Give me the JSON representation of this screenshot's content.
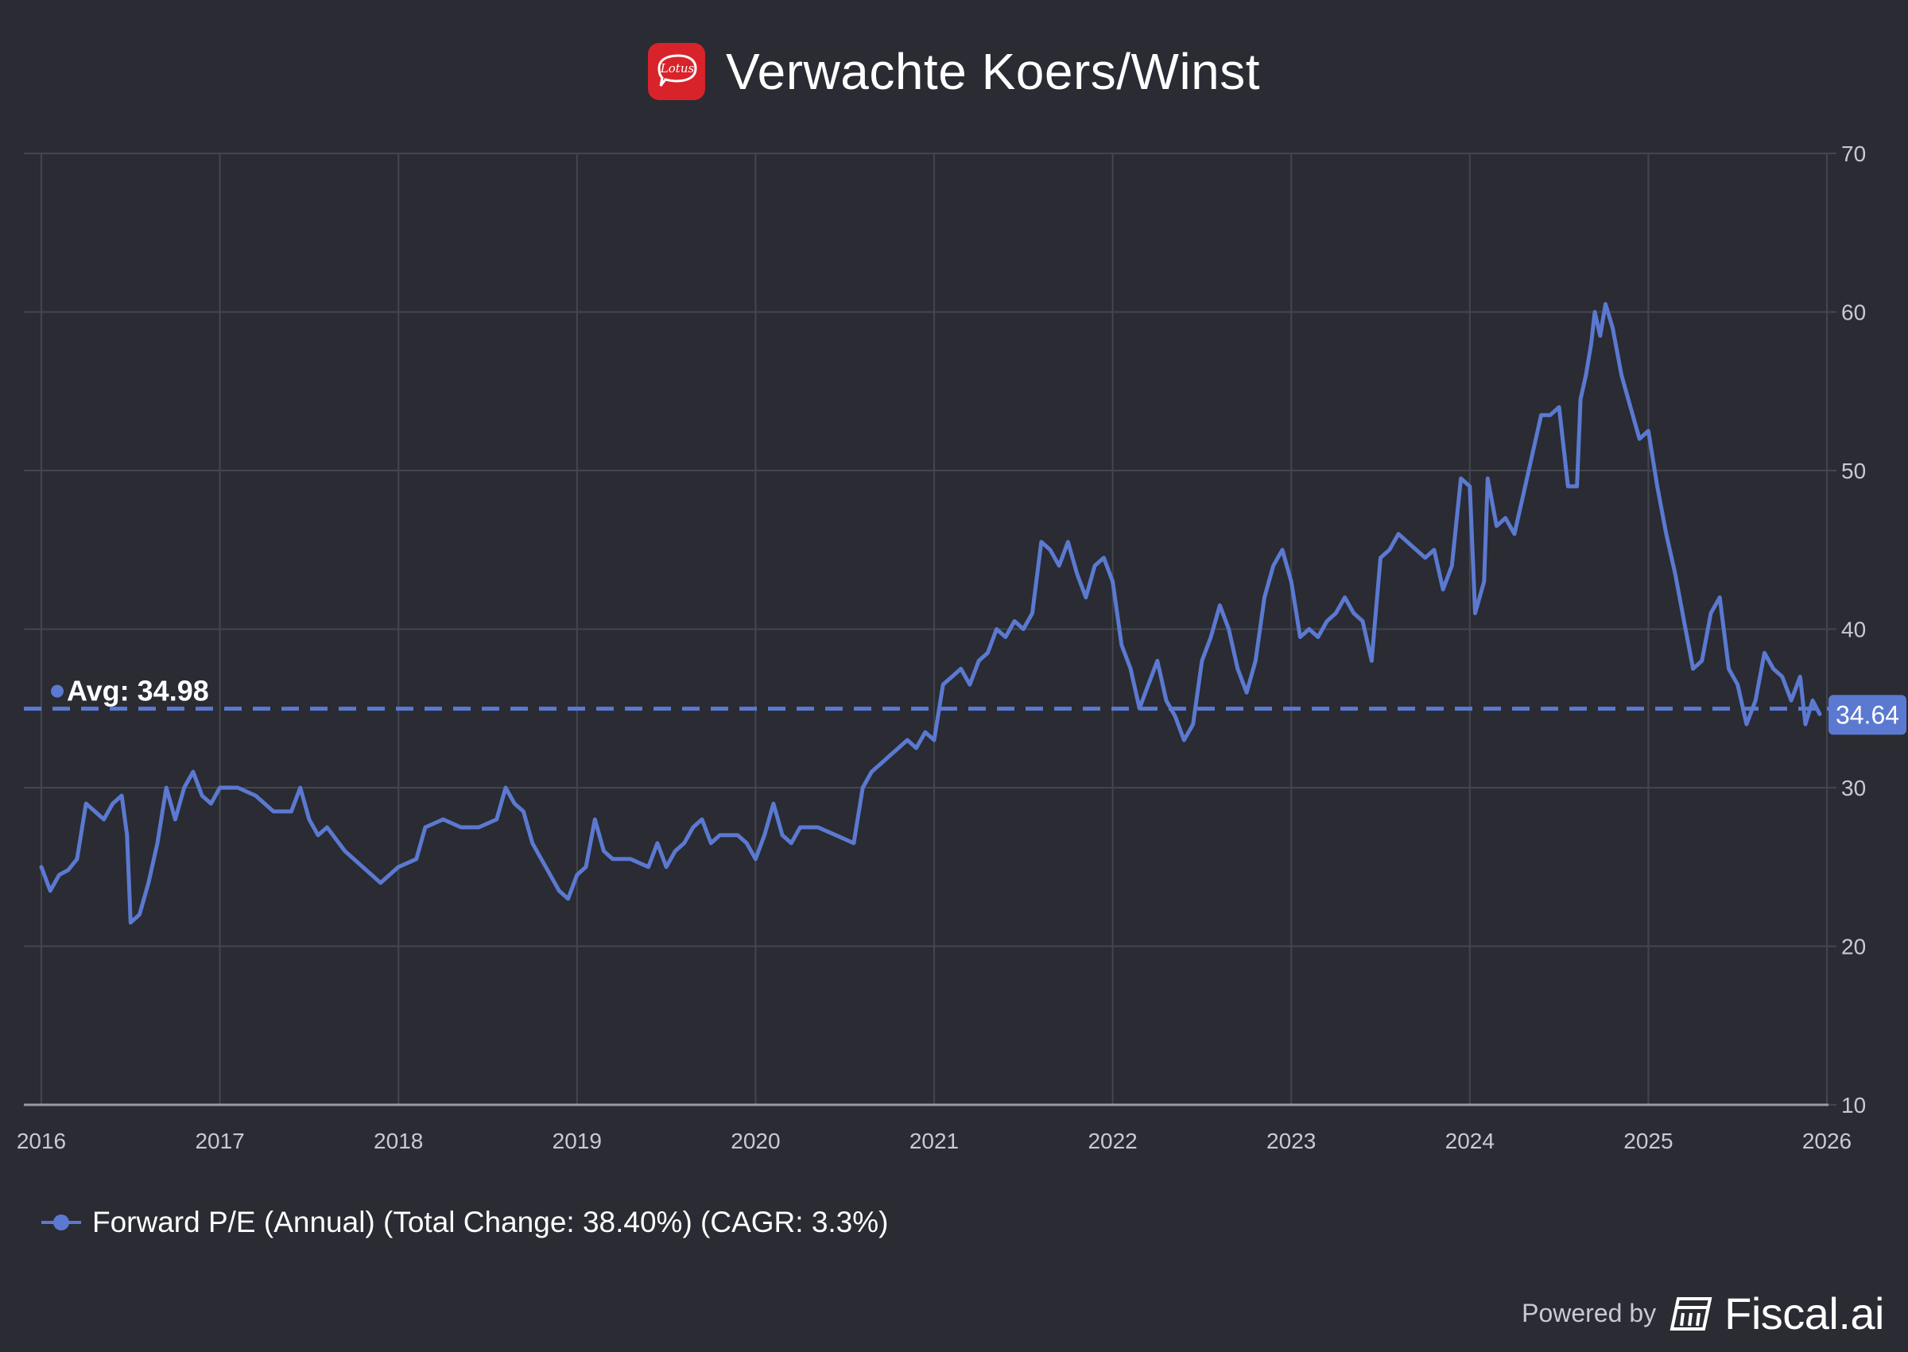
{
  "header": {
    "title": "Verwachte Koers/Winst",
    "logo_text": "Lotus"
  },
  "chart_data": {
    "type": "line",
    "title": "Verwachte Koers/Winst",
    "xlabel": "",
    "ylabel": "",
    "x_ticks": [
      "2016",
      "2017",
      "2018",
      "2019",
      "2020",
      "2021",
      "2022",
      "2023",
      "2024",
      "2025",
      "2026"
    ],
    "y_ticks": [
      10,
      20,
      30,
      40,
      50,
      60,
      70
    ],
    "xlim": [
      2016.0,
      2026.0
    ],
    "ylim": [
      10,
      70
    ],
    "y_axis_side": "right",
    "grid": true,
    "average": {
      "label": "Avg: 34.98",
      "value": 34.98
    },
    "last_value_label": "34.64",
    "legend_position": "bottom-left",
    "series": [
      {
        "name": "Forward P/E (Annual) (Total Change: 38.40%) (CAGR: 3.3%)",
        "color": "#5b79d0",
        "points": [
          [
            2016.0,
            25.0
          ],
          [
            2016.05,
            23.5
          ],
          [
            2016.1,
            24.5
          ],
          [
            2016.15,
            24.8
          ],
          [
            2016.2,
            25.5
          ],
          [
            2016.25,
            29.0
          ],
          [
            2016.3,
            28.5
          ],
          [
            2016.35,
            28.0
          ],
          [
            2016.4,
            29.0
          ],
          [
            2016.45,
            29.5
          ],
          [
            2016.48,
            27.0
          ],
          [
            2016.5,
            21.5
          ],
          [
            2016.55,
            22.0
          ],
          [
            2016.6,
            24.0
          ],
          [
            2016.65,
            26.5
          ],
          [
            2016.7,
            30.0
          ],
          [
            2016.75,
            28.0
          ],
          [
            2016.8,
            30.0
          ],
          [
            2016.85,
            31.0
          ],
          [
            2016.9,
            29.5
          ],
          [
            2016.95,
            29.0
          ],
          [
            2017.0,
            30.0
          ],
          [
            2017.1,
            30.0
          ],
          [
            2017.2,
            29.5
          ],
          [
            2017.3,
            28.5
          ],
          [
            2017.4,
            28.5
          ],
          [
            2017.45,
            30.0
          ],
          [
            2017.5,
            28.0
          ],
          [
            2017.55,
            27.0
          ],
          [
            2017.6,
            27.5
          ],
          [
            2017.7,
            26.0
          ],
          [
            2017.8,
            25.0
          ],
          [
            2017.9,
            24.0
          ],
          [
            2018.0,
            25.0
          ],
          [
            2018.1,
            25.5
          ],
          [
            2018.15,
            27.5
          ],
          [
            2018.25,
            28.0
          ],
          [
            2018.35,
            27.5
          ],
          [
            2018.45,
            27.5
          ],
          [
            2018.55,
            28.0
          ],
          [
            2018.6,
            30.0
          ],
          [
            2018.65,
            29.0
          ],
          [
            2018.7,
            28.5
          ],
          [
            2018.75,
            26.5
          ],
          [
            2018.8,
            25.5
          ],
          [
            2018.85,
            24.5
          ],
          [
            2018.9,
            23.5
          ],
          [
            2018.95,
            23.0
          ],
          [
            2019.0,
            24.5
          ],
          [
            2019.05,
            25.0
          ],
          [
            2019.1,
            28.0
          ],
          [
            2019.15,
            26.0
          ],
          [
            2019.2,
            25.5
          ],
          [
            2019.3,
            25.5
          ],
          [
            2019.4,
            25.0
          ],
          [
            2019.45,
            26.5
          ],
          [
            2019.5,
            25.0
          ],
          [
            2019.55,
            26.0
          ],
          [
            2019.6,
            26.5
          ],
          [
            2019.65,
            27.5
          ],
          [
            2019.7,
            28.0
          ],
          [
            2019.75,
            26.5
          ],
          [
            2019.8,
            27.0
          ],
          [
            2019.9,
            27.0
          ],
          [
            2019.95,
            26.5
          ],
          [
            2020.0,
            25.5
          ],
          [
            2020.05,
            27.0
          ],
          [
            2020.1,
            29.0
          ],
          [
            2020.15,
            27.0
          ],
          [
            2020.2,
            26.5
          ],
          [
            2020.25,
            27.5
          ],
          [
            2020.35,
            27.5
          ],
          [
            2020.45,
            27.0
          ],
          [
            2020.55,
            26.5
          ],
          [
            2020.6,
            30.0
          ],
          [
            2020.65,
            31.0
          ],
          [
            2020.7,
            31.5
          ],
          [
            2020.75,
            32.0
          ],
          [
            2020.8,
            32.5
          ],
          [
            2020.85,
            33.0
          ],
          [
            2020.9,
            32.5
          ],
          [
            2020.95,
            33.5
          ],
          [
            2021.0,
            33.0
          ],
          [
            2021.05,
            36.5
          ],
          [
            2021.1,
            37.0
          ],
          [
            2021.15,
            37.5
          ],
          [
            2021.2,
            36.5
          ],
          [
            2021.25,
            38.0
          ],
          [
            2021.3,
            38.5
          ],
          [
            2021.35,
            40.0
          ],
          [
            2021.4,
            39.5
          ],
          [
            2021.45,
            40.5
          ],
          [
            2021.5,
            40.0
          ],
          [
            2021.55,
            41.0
          ],
          [
            2021.6,
            45.5
          ],
          [
            2021.65,
            45.0
          ],
          [
            2021.7,
            44.0
          ],
          [
            2021.75,
            45.5
          ],
          [
            2021.8,
            43.5
          ],
          [
            2021.85,
            42.0
          ],
          [
            2021.9,
            44.0
          ],
          [
            2021.95,
            44.5
          ],
          [
            2022.0,
            43.0
          ],
          [
            2022.05,
            39.0
          ],
          [
            2022.1,
            37.5
          ],
          [
            2022.15,
            35.0
          ],
          [
            2022.2,
            36.5
          ],
          [
            2022.25,
            38.0
          ],
          [
            2022.3,
            35.5
          ],
          [
            2022.35,
            34.5
          ],
          [
            2022.4,
            33.0
          ],
          [
            2022.45,
            34.0
          ],
          [
            2022.5,
            38.0
          ],
          [
            2022.55,
            39.5
          ],
          [
            2022.6,
            41.5
          ],
          [
            2022.65,
            40.0
          ],
          [
            2022.7,
            37.5
          ],
          [
            2022.75,
            36.0
          ],
          [
            2022.8,
            38.0
          ],
          [
            2022.85,
            42.0
          ],
          [
            2022.9,
            44.0
          ],
          [
            2022.95,
            45.0
          ],
          [
            2023.0,
            43.0
          ],
          [
            2023.05,
            39.5
          ],
          [
            2023.1,
            40.0
          ],
          [
            2023.15,
            39.5
          ],
          [
            2023.2,
            40.5
          ],
          [
            2023.25,
            41.0
          ],
          [
            2023.3,
            42.0
          ],
          [
            2023.35,
            41.0
          ],
          [
            2023.4,
            40.5
          ],
          [
            2023.45,
            38.0
          ],
          [
            2023.5,
            44.5
          ],
          [
            2023.55,
            45.0
          ],
          [
            2023.6,
            46.0
          ],
          [
            2023.65,
            45.5
          ],
          [
            2023.7,
            45.0
          ],
          [
            2023.75,
            44.5
          ],
          [
            2023.8,
            45.0
          ],
          [
            2023.85,
            42.5
          ],
          [
            2023.9,
            44.0
          ],
          [
            2023.95,
            49.5
          ],
          [
            2024.0,
            49.0
          ],
          [
            2024.03,
            41.0
          ],
          [
            2024.08,
            43.0
          ],
          [
            2024.1,
            49.5
          ],
          [
            2024.15,
            46.5
          ],
          [
            2024.2,
            47.0
          ],
          [
            2024.25,
            46.0
          ],
          [
            2024.3,
            48.5
          ],
          [
            2024.35,
            51.0
          ],
          [
            2024.4,
            53.5
          ],
          [
            2024.45,
            53.5
          ],
          [
            2024.5,
            54.0
          ],
          [
            2024.55,
            49.0
          ],
          [
            2024.6,
            49.0
          ],
          [
            2024.62,
            54.5
          ],
          [
            2024.65,
            56.0
          ],
          [
            2024.68,
            58.0
          ],
          [
            2024.7,
            60.0
          ],
          [
            2024.73,
            58.5
          ],
          [
            2024.76,
            60.5
          ],
          [
            2024.8,
            59.0
          ],
          [
            2024.85,
            56.0
          ],
          [
            2024.9,
            54.0
          ],
          [
            2024.95,
            52.0
          ],
          [
            2025.0,
            52.5
          ],
          [
            2025.05,
            49.0
          ],
          [
            2025.1,
            46.0
          ],
          [
            2025.15,
            43.5
          ],
          [
            2025.2,
            40.5
          ],
          [
            2025.25,
            37.5
          ],
          [
            2025.3,
            38.0
          ],
          [
            2025.35,
            41.0
          ],
          [
            2025.4,
            42.0
          ],
          [
            2025.45,
            37.5
          ],
          [
            2025.5,
            36.5
          ],
          [
            2025.55,
            34.0
          ],
          [
            2025.6,
            35.5
          ],
          [
            2025.65,
            38.5
          ],
          [
            2025.7,
            37.5
          ],
          [
            2025.75,
            37.0
          ],
          [
            2025.8,
            35.5
          ],
          [
            2025.85,
            37.0
          ],
          [
            2025.88,
            34.0
          ],
          [
            2025.92,
            35.5
          ],
          [
            2025.96,
            34.64
          ]
        ]
      }
    ]
  },
  "legend": {
    "label": "Forward P/E (Annual) (Total Change: 38.40%) (CAGR: 3.3%)"
  },
  "footer": {
    "powered_by": "Powered by",
    "brand": "Fiscal.ai"
  }
}
